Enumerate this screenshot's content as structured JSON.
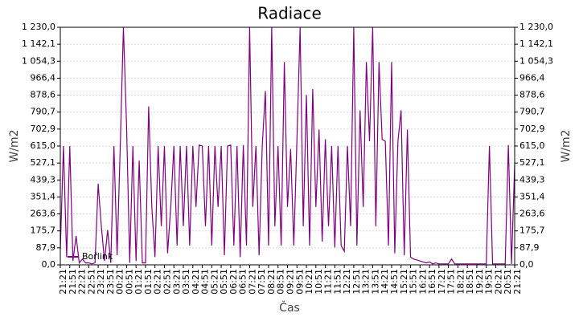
{
  "chart_data": {
    "type": "line",
    "title": "Radiace",
    "x_label": "Čas",
    "y_label": "W/m2",
    "categories": [
      "21:21",
      null,
      null,
      "21:51",
      null,
      null,
      "22:21",
      null,
      null,
      "22:51",
      null,
      null,
      "23:21",
      null,
      null,
      "23:51",
      null,
      null,
      "00:21",
      null,
      null,
      "00:51",
      null,
      null,
      "01:21",
      null,
      null,
      "01:51",
      null,
      null,
      "02:21",
      null,
      null,
      "02:51",
      null,
      null,
      "03:21",
      null,
      null,
      "03:51",
      null,
      null,
      "04:21",
      null,
      null,
      "04:51",
      null,
      null,
      "05:21",
      null,
      null,
      "05:51",
      null,
      null,
      "06:21",
      null,
      null,
      "06:51",
      null,
      null,
      "07:21",
      null,
      null,
      "07:51",
      null,
      null,
      "08:21",
      null,
      null,
      "08:51",
      null,
      null,
      "09:21",
      null,
      null,
      "09:51",
      null,
      null,
      "10:21",
      null,
      null,
      "10:51",
      null,
      null,
      "11:21",
      null,
      null,
      "11:51",
      null,
      null,
      "12:21",
      null,
      null,
      "12:51",
      null,
      null,
      "13:21",
      null,
      null,
      "13:51",
      null,
      null,
      "14:21",
      null,
      null,
      "14:51",
      null,
      null,
      "15:21",
      null,
      null,
      "15:51",
      null,
      null,
      "16:21",
      null,
      null,
      "16:51",
      null,
      null,
      "17:21",
      null,
      null,
      "17:51",
      null,
      null,
      "18:21",
      null,
      null,
      "18:51",
      null,
      null,
      "19:21",
      null,
      null,
      "19:51",
      null,
      null,
      "20:21",
      null,
      null,
      "20:51",
      null,
      null,
      "21:21"
    ],
    "series": [
      {
        "name": "Bořlink",
        "color": "#800080",
        "values": [
          80,
          615,
          40,
          615,
          20,
          150,
          10,
          30,
          10,
          10,
          5,
          10,
          420,
          200,
          20,
          180,
          10,
          615,
          50,
          615,
          1230,
          720,
          10,
          615,
          20,
          540,
          10,
          10,
          820,
          300,
          40,
          615,
          200,
          615,
          60,
          300,
          615,
          100,
          615,
          200,
          615,
          100,
          615,
          300,
          620,
          615,
          200,
          615,
          100,
          615,
          300,
          615,
          50,
          615,
          620,
          100,
          615,
          40,
          620,
          100,
          1230,
          300,
          615,
          50,
          615,
          900,
          100,
          1230,
          200,
          615,
          100,
          1050,
          300,
          600,
          100,
          650,
          1230,
          200,
          880,
          100,
          910,
          300,
          700,
          120,
          650,
          200,
          615,
          90,
          615,
          100,
          70,
          615,
          200,
          1230,
          100,
          800,
          300,
          1050,
          640,
          1230,
          200,
          1050,
          650,
          640,
          100,
          1050,
          60,
          640,
          800,
          50,
          700,
          40,
          30,
          25,
          20,
          15,
          10,
          15,
          5,
          10,
          5,
          5,
          5,
          5,
          30,
          5,
          5,
          5,
          5,
          5,
          5,
          5,
          5,
          5,
          5,
          5,
          615,
          5,
          5,
          5,
          5,
          5,
          620,
          5,
          520
        ]
      }
    ],
    "ylim": [
      0,
      1230
    ],
    "yticks": [
      {
        "value": 0,
        "label": "0,0"
      },
      {
        "value": 87.9,
        "label": "87,9"
      },
      {
        "value": 175.7,
        "label": "175,7"
      },
      {
        "value": 263.6,
        "label": "263,6"
      },
      {
        "value": 351.4,
        "label": "351,4"
      },
      {
        "value": 439.3,
        "label": "439,3"
      },
      {
        "value": 527.1,
        "label": "527,1"
      },
      {
        "value": 615,
        "label": "615,0"
      },
      {
        "value": 702.9,
        "label": "702,9"
      },
      {
        "value": 790.7,
        "label": "790,7"
      },
      {
        "value": 878.6,
        "label": "878,6"
      },
      {
        "value": 966.4,
        "label": "966,4"
      },
      {
        "value": 1054.3,
        "label": "1 054,3"
      },
      {
        "value": 1142.1,
        "label": "1 142,1"
      },
      {
        "value": 1230,
        "label": "1 230,0"
      }
    ],
    "grid": true
  }
}
